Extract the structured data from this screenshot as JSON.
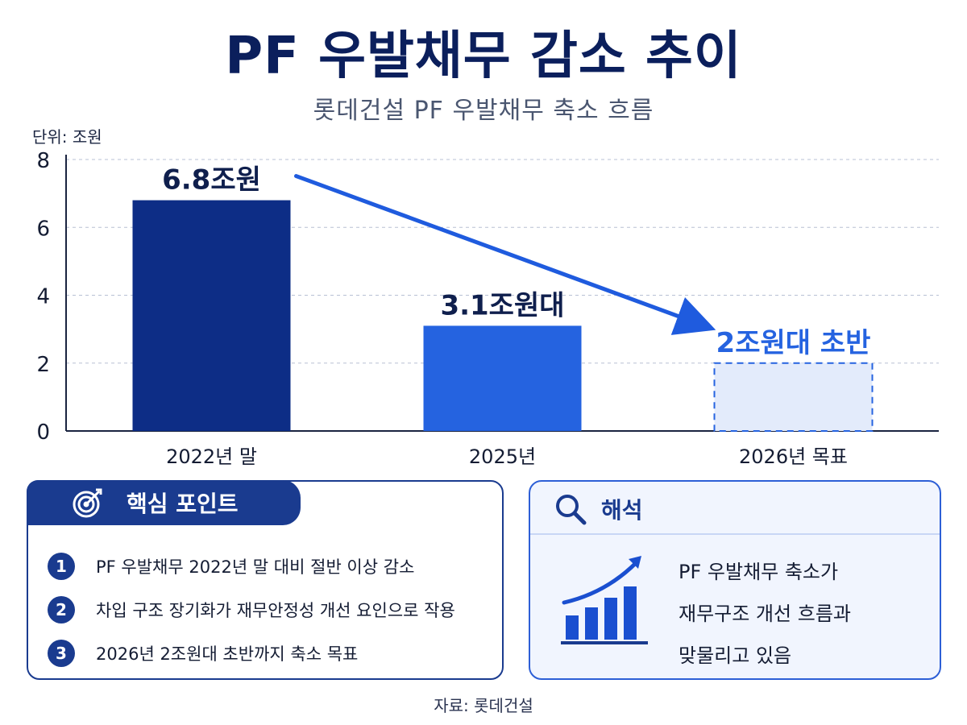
{
  "title": "PF 우발채무 감소 추이",
  "subtitle": "롯데건설 PF 우발채무 축소 흐름",
  "unit_label": "단위: 조원",
  "chart_data": {
    "type": "bar",
    "categories": [
      "2022년 말",
      "2025년",
      "2026년 목표"
    ],
    "values": [
      6.8,
      3.1,
      2.0
    ],
    "value_labels": [
      "6.8조원",
      "3.1조원대",
      "2조원대 초반"
    ],
    "ylim": [
      0,
      8
    ],
    "yticks": [
      0,
      2,
      4,
      6,
      8
    ],
    "grid": true,
    "colors": [
      "#0d2d86",
      "#2563e0",
      "#e3ebfb"
    ],
    "target_border": "#2563e0",
    "trend_arrow": "from first bar down to target",
    "arrow_color": "#1f5bde"
  },
  "key_points": {
    "header": "핵심 포인트",
    "icon": "target-icon",
    "items": [
      {
        "num": "1",
        "text": "PF 우발채무 2022년 말 대비 절반 이상 감소"
      },
      {
        "num": "2",
        "text": "차입 구조 장기화가 재무안정성 개선 요인으로 작용"
      },
      {
        "num": "3",
        "text": "2026년 2조원대 초반까지 축소 목표"
      }
    ]
  },
  "interpretation": {
    "header": "해석",
    "icon": "search-icon",
    "chart_icon": "growth-chart-icon",
    "lines": [
      "PF 우발채무 축소가",
      "재무구조 개선 흐름과",
      "맞물리고 있음"
    ]
  },
  "source": "자료: 롯데건설",
  "colors": {
    "navy": "#1a3b8f",
    "accent": "#2563e0"
  }
}
